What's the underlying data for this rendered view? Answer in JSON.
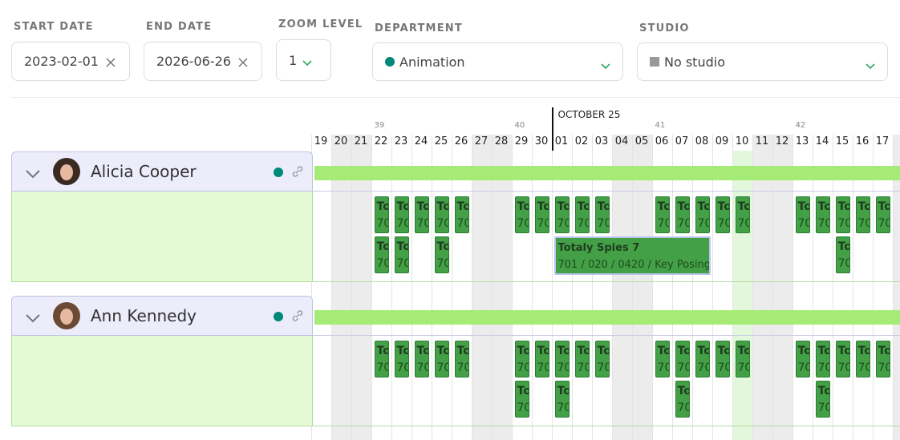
{
  "filters": [
    {
      "label": "START DATE",
      "value": "2023-02-01"
    },
    {
      "label": "END DATE",
      "value": "2026-06-26"
    },
    {
      "label": "ZOOM LEVEL",
      "value": "1"
    },
    {
      "label": "DEPARTMENT",
      "value": "Animation"
    },
    {
      "label": "STUDIO",
      "value": "No studio"
    }
  ],
  "timeline": {
    "month": "OCTOBER 25",
    "weeks": [
      "39",
      "40",
      "41",
      "42"
    ],
    "days": [
      "19",
      "20",
      "21",
      "22",
      "23",
      "24",
      "25",
      "26",
      "27",
      "28",
      "29",
      "30",
      "01",
      "02",
      "03",
      "04",
      "05",
      "06",
      "07",
      "08",
      "09",
      "10",
      "11",
      "12",
      "13",
      "14",
      "15",
      "16",
      "17"
    ]
  },
  "people": [
    {
      "name": "Alicia Cooper",
      "tasks": [
        {
          "title": "To",
          "subtitle": "70"
        },
        {
          "title": "To",
          "subtitle": "70"
        },
        {
          "title": "To",
          "subtitle": "70"
        },
        {
          "title": "To",
          "subtitle": "70"
        },
        {
          "title": "To",
          "subtitle": "70"
        },
        {
          "title": "To",
          "subtitle": "70"
        },
        {
          "title": "To",
          "subtitle": "70"
        },
        {
          "title": "To",
          "subtitle": "70"
        },
        {
          "title": "To",
          "subtitle": "70"
        },
        {
          "title": "To",
          "subtitle": "70"
        },
        {
          "title": "To",
          "subtitle": "70"
        },
        {
          "title": "To",
          "subtitle": "70"
        },
        {
          "title": "To",
          "subtitle": "70"
        },
        {
          "title": "To",
          "subtitle": "70"
        },
        {
          "title": "To",
          "subtitle": "70"
        },
        {
          "title": "To",
          "subtitle": "70"
        },
        {
          "title": "To",
          "subtitle": "70"
        },
        {
          "title": "To",
          "subtitle": "70"
        },
        {
          "title": "To",
          "subtitle": "70"
        },
        {
          "title": "To",
          "subtitle": "70"
        },
        {
          "title": "To",
          "subtitle": "70"
        },
        {
          "title": "To",
          "subtitle": "70"
        },
        {
          "title": "To",
          "subtitle": "70"
        },
        {
          "title": "Totaly Spies 7",
          "subtitle": "701 / 020 / 0420 / Key Posing"
        },
        {
          "title": "To",
          "subtitle": "70"
        }
      ]
    },
    {
      "name": "Ann Kennedy",
      "tasks": [
        {
          "title": "To",
          "subtitle": "70"
        },
        {
          "title": "To",
          "subtitle": "70"
        },
        {
          "title": "To",
          "subtitle": "70"
        },
        {
          "title": "To",
          "subtitle": "70"
        },
        {
          "title": "To",
          "subtitle": "70"
        },
        {
          "title": "To",
          "subtitle": "70"
        },
        {
          "title": "To",
          "subtitle": "70"
        },
        {
          "title": "To",
          "subtitle": "70"
        },
        {
          "title": "To",
          "subtitle": "70"
        },
        {
          "title": "To",
          "subtitle": "70"
        },
        {
          "title": "To",
          "subtitle": "70"
        },
        {
          "title": "To",
          "subtitle": "70"
        },
        {
          "title": "To",
          "subtitle": "70"
        },
        {
          "title": "To",
          "subtitle": "70"
        },
        {
          "title": "To",
          "subtitle": "70"
        },
        {
          "title": "To",
          "subtitle": "70"
        },
        {
          "title": "To",
          "subtitle": "70"
        },
        {
          "title": "To",
          "subtitle": "70"
        },
        {
          "title": "To",
          "subtitle": "70"
        },
        {
          "title": "To",
          "subtitle": "70"
        },
        {
          "title": "To",
          "subtitle": "70"
        },
        {
          "title": "To",
          "subtitle": "70"
        },
        {
          "title": "To",
          "subtitle": "70"
        },
        {
          "title": "To",
          "subtitle": "70"
        }
      ]
    }
  ]
}
